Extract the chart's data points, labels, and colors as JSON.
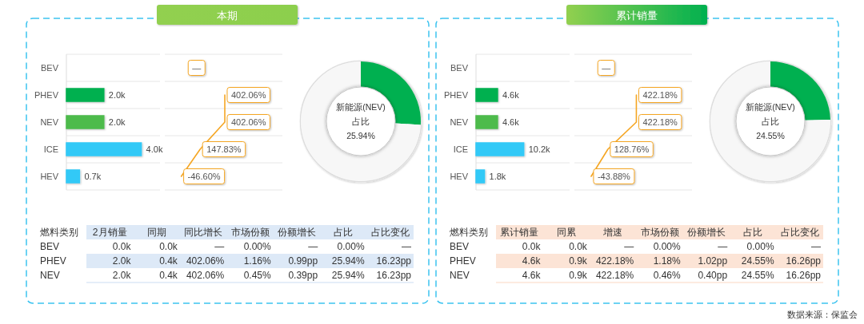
{
  "chart_data": [
    {
      "type": "other",
      "title": "本期"
    },
    {
      "type": "bar",
      "orientation": "horizontal",
      "categories": [
        "BEV",
        "PHEV",
        "NEV",
        "ICE",
        "HEV"
      ],
      "values": [
        0.0,
        2.0,
        2.0,
        4.0,
        0.7
      ],
      "colors": [
        "#e6e6e6",
        "#00b050",
        "#4dbb4c",
        "#33c9f7",
        "#33c9f7"
      ],
      "value_labels": [
        null,
        "2.0k",
        "2.0k",
        "4.0k",
        "0.7k"
      ],
      "grid": "y",
      "tick_labels": "y"
    },
    {
      "type": "line",
      "orientation": "horizontal",
      "categories": [
        null,
        null,
        null,
        null,
        null
      ],
      "series": [
        {
          "color": "#f5a623",
          "values": [
            null,
            402.06,
            402.06,
            147.83,
            -46.6
          ],
          "value_labels": [
            "—",
            "402.06%",
            "402.06%",
            "147.83%",
            "-46.60%"
          ]
        }
      ],
      "grid": "y",
      "tick_labels": false
    },
    {
      "type": "donut",
      "title": "新能源(NEV)",
      "subtitle": "占比",
      "annotations": [
        "25.94%"
      ],
      "categories": [
        null,
        null
      ],
      "values": [
        25.94,
        74.06
      ],
      "colors": [
        "#00b050",
        "#f7f7f7"
      ]
    },
    {
      "type": "other",
      "categories": [
        "燃料类别",
        "2月销量",
        "同期",
        "同比增长",
        "市场份额",
        "份额增长",
        "占比",
        "占比变化"
      ],
      "cell_labels": [
        [
          "BEV",
          "0.0k",
          "0.0k",
          "—",
          "0.00%",
          "—",
          "0.00%",
          "—"
        ],
        [
          "PHEV",
          "2.0k",
          "0.4k",
          "402.06%",
          "1.16%",
          "0.99pp",
          "25.94%",
          "16.23pp"
        ],
        [
          "NEV",
          "2.0k",
          "0.4k",
          "402.06%",
          "0.45%",
          "0.39pp",
          "25.94%",
          "16.23pp"
        ]
      ],
      "colors": [
        "#dde9f7"
      ]
    },
    {
      "type": "other",
      "title": "累计销量"
    },
    {
      "type": "bar",
      "orientation": "horizontal",
      "categories": [
        "BEV",
        "PHEV",
        "NEV",
        "ICE",
        "HEV"
      ],
      "values": [
        0.0,
        4.6,
        4.6,
        10.2,
        1.8
      ],
      "colors": [
        "#e6e6e6",
        "#00b050",
        "#4dbb4c",
        "#33c9f7",
        "#33c9f7"
      ],
      "value_labels": [
        null,
        "4.6k",
        "4.6k",
        "10.2k",
        "1.8k"
      ],
      "grid": "y",
      "tick_labels": "y"
    },
    {
      "type": "line",
      "orientation": "horizontal",
      "categories": [
        null,
        null,
        null,
        null,
        null
      ],
      "series": [
        {
          "color": "#f5a623",
          "values": [
            null,
            422.18,
            422.18,
            128.76,
            -43.88
          ],
          "value_labels": [
            "—",
            "422.18%",
            "422.18%",
            "128.76%",
            "-43.88%"
          ]
        }
      ],
      "grid": "y",
      "tick_labels": false
    },
    {
      "type": "donut",
      "title": "新能源(NEV)",
      "subtitle": "占比",
      "annotations": [
        "24.55%"
      ],
      "categories": [
        null,
        null
      ],
      "values": [
        24.55,
        75.45
      ],
      "colors": [
        "#00b050",
        "#f7f7f7"
      ]
    },
    {
      "type": "other",
      "categories": [
        "燃料类别",
        "累计销量",
        "同累",
        "增速",
        "市场份额",
        "份额增长",
        "占比",
        "占比变化"
      ],
      "cell_labels": [
        [
          "BEV",
          "0.0k",
          "0.0k",
          "—",
          "0.00%",
          "—",
          "0.00%",
          "—"
        ],
        [
          "PHEV",
          "4.6k",
          "0.9k",
          "422.18%",
          "1.18%",
          "1.02pp",
          "24.55%",
          "16.26pp"
        ],
        [
          "NEV",
          "4.6k",
          "0.9k",
          "422.18%",
          "0.46%",
          "0.40pp",
          "24.55%",
          "16.26pp"
        ]
      ],
      "colors": [
        "#fce4d6"
      ]
    },
    {
      "type": "other",
      "annotations": [
        "数据来源：保监会"
      ]
    }
  ]
}
